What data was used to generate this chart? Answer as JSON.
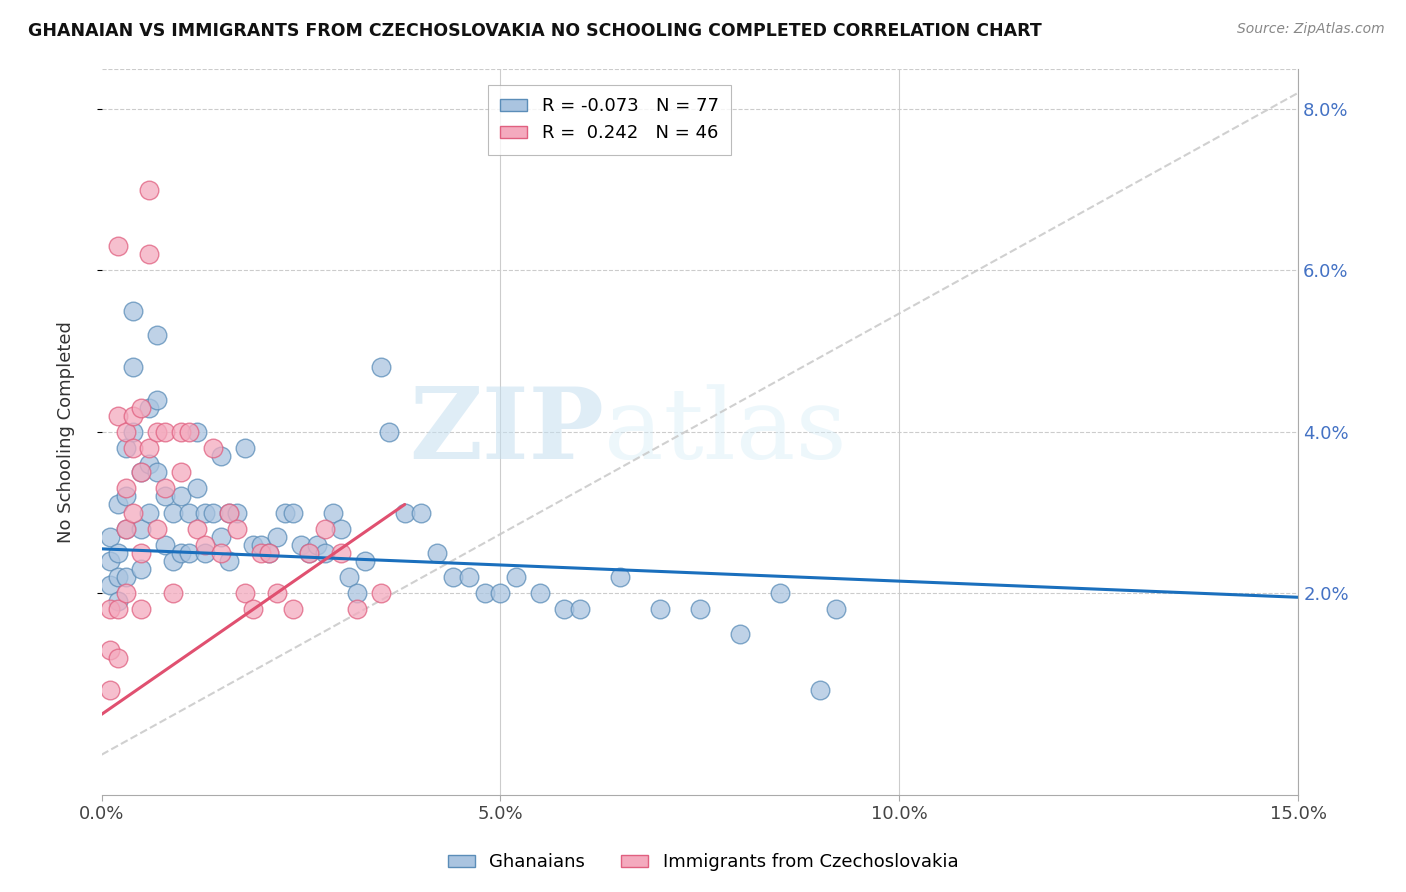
{
  "title": "GHANAIAN VS IMMIGRANTS FROM CZECHOSLOVAKIA NO SCHOOLING COMPLETED CORRELATION CHART",
  "source": "Source: ZipAtlas.com",
  "xlabel": "",
  "ylabel": "No Schooling Completed",
  "x_min": 0.0,
  "x_max": 0.15,
  "y_min": -0.005,
  "y_max": 0.085,
  "y_ticks": [
    0.02,
    0.04,
    0.06,
    0.08
  ],
  "y_tick_labels": [
    "2.0%",
    "4.0%",
    "6.0%",
    "8.0%"
  ],
  "x_ticks": [
    0.0,
    0.05,
    0.1,
    0.15
  ],
  "x_tick_labels": [
    "0.0%",
    "5.0%",
    "10.0%",
    "15.0%"
  ],
  "ghanaian_color": "#aac4e0",
  "czech_color": "#f4aabe",
  "ghanaian_edge": "#5b8db8",
  "czech_edge": "#e06080",
  "line_blue": "#1a6fbd",
  "line_pink": "#e05070",
  "line_gray": "#c8c8c8",
  "R_ghanaian": -0.073,
  "N_ghanaian": 77,
  "R_czech": 0.242,
  "N_czech": 46,
  "watermark_zip": "ZIP",
  "watermark_atlas": "atlas",
  "legend_label_1": "Ghanaians",
  "legend_label_2": "Immigrants from Czechoslovakia",
  "blue_line_x": [
    0.0,
    0.15
  ],
  "blue_line_y": [
    0.0255,
    0.0195
  ],
  "pink_line_x": [
    0.0,
    0.038
  ],
  "pink_line_y": [
    0.005,
    0.031
  ],
  "gray_line_x": [
    0.0,
    0.15
  ],
  "gray_line_y": [
    0.0,
    0.082
  ],
  "ghanaian_x": [
    0.001,
    0.001,
    0.001,
    0.002,
    0.002,
    0.002,
    0.002,
    0.003,
    0.003,
    0.003,
    0.003,
    0.004,
    0.004,
    0.004,
    0.005,
    0.005,
    0.005,
    0.006,
    0.006,
    0.006,
    0.007,
    0.007,
    0.007,
    0.008,
    0.008,
    0.009,
    0.009,
    0.01,
    0.01,
    0.011,
    0.011,
    0.012,
    0.012,
    0.013,
    0.013,
    0.014,
    0.015,
    0.015,
    0.016,
    0.016,
    0.017,
    0.018,
    0.019,
    0.02,
    0.021,
    0.022,
    0.023,
    0.024,
    0.025,
    0.026,
    0.027,
    0.028,
    0.029,
    0.03,
    0.031,
    0.032,
    0.033,
    0.035,
    0.036,
    0.038,
    0.04,
    0.042,
    0.044,
    0.046,
    0.048,
    0.05,
    0.052,
    0.055,
    0.058,
    0.06,
    0.065,
    0.07,
    0.075,
    0.08,
    0.085,
    0.09,
    0.092
  ],
  "ghanaian_y": [
    0.027,
    0.024,
    0.021,
    0.031,
    0.025,
    0.022,
    0.019,
    0.038,
    0.032,
    0.028,
    0.022,
    0.055,
    0.048,
    0.04,
    0.035,
    0.028,
    0.023,
    0.043,
    0.036,
    0.03,
    0.052,
    0.044,
    0.035,
    0.032,
    0.026,
    0.03,
    0.024,
    0.032,
    0.025,
    0.03,
    0.025,
    0.04,
    0.033,
    0.03,
    0.025,
    0.03,
    0.037,
    0.027,
    0.03,
    0.024,
    0.03,
    0.038,
    0.026,
    0.026,
    0.025,
    0.027,
    0.03,
    0.03,
    0.026,
    0.025,
    0.026,
    0.025,
    0.03,
    0.028,
    0.022,
    0.02,
    0.024,
    0.048,
    0.04,
    0.03,
    0.03,
    0.025,
    0.022,
    0.022,
    0.02,
    0.02,
    0.022,
    0.02,
    0.018,
    0.018,
    0.022,
    0.018,
    0.018,
    0.015,
    0.02,
    0.008,
    0.018
  ],
  "czech_x": [
    0.001,
    0.001,
    0.001,
    0.002,
    0.002,
    0.002,
    0.002,
    0.003,
    0.003,
    0.003,
    0.003,
    0.004,
    0.004,
    0.004,
    0.005,
    0.005,
    0.005,
    0.005,
    0.006,
    0.006,
    0.006,
    0.007,
    0.007,
    0.008,
    0.008,
    0.009,
    0.01,
    0.01,
    0.011,
    0.012,
    0.013,
    0.014,
    0.015,
    0.016,
    0.017,
    0.018,
    0.019,
    0.02,
    0.021,
    0.022,
    0.024,
    0.026,
    0.028,
    0.03,
    0.032,
    0.035
  ],
  "czech_y": [
    0.008,
    0.013,
    0.018,
    0.042,
    0.063,
    0.018,
    0.012,
    0.04,
    0.033,
    0.028,
    0.02,
    0.042,
    0.038,
    0.03,
    0.043,
    0.035,
    0.025,
    0.018,
    0.07,
    0.062,
    0.038,
    0.04,
    0.028,
    0.04,
    0.033,
    0.02,
    0.04,
    0.035,
    0.04,
    0.028,
    0.026,
    0.038,
    0.025,
    0.03,
    0.028,
    0.02,
    0.018,
    0.025,
    0.025,
    0.02,
    0.018,
    0.025,
    0.028,
    0.025,
    0.018,
    0.02
  ]
}
